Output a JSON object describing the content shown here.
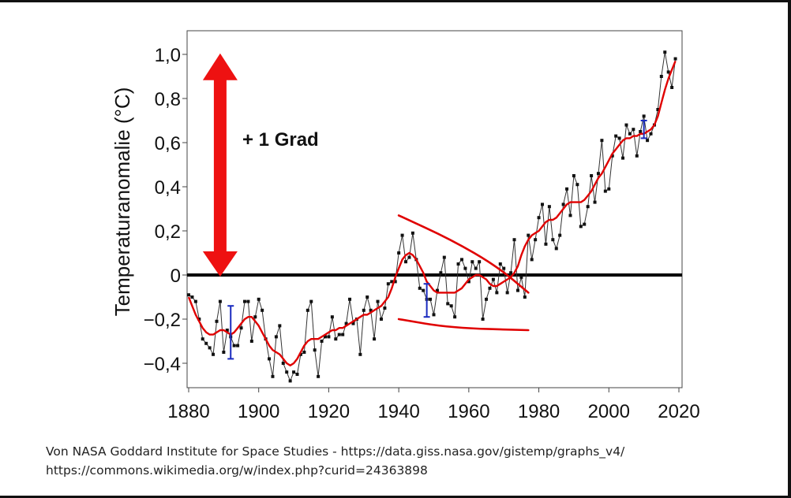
{
  "chart_data": {
    "type": "line",
    "title": "",
    "ylabel": "Temperaturanomalie (°C)",
    "xlabel": "",
    "xlim": [
      1880,
      2020
    ],
    "ylim": [
      -0.5,
      1.1
    ],
    "grid": false,
    "x_ticks": [
      "1880",
      "1900",
      "1920",
      "1940",
      "1960",
      "1980",
      "2000",
      "2020"
    ],
    "y_ticks": [
      {
        "value": 1.0,
        "label": "1,0"
      },
      {
        "value": 0.8,
        "label": "0,8"
      },
      {
        "value": 0.6,
        "label": "0,6"
      },
      {
        "value": 0.4,
        "label": "0,4"
      },
      {
        "value": 0.2,
        "label": "0,2"
      },
      {
        "value": 0.0,
        "label": "0"
      },
      {
        "value": -0.2,
        "label": "−0,2"
      },
      {
        "value": -0.4,
        "label": "−0,4"
      }
    ],
    "series": [
      {
        "color": "#111111",
        "style": "line-with-square-markers",
        "x": [
          1880,
          1881,
          1882,
          1883,
          1884,
          1885,
          1886,
          1887,
          1888,
          1889,
          1890,
          1891,
          1892,
          1893,
          1894,
          1895,
          1896,
          1897,
          1898,
          1899,
          1900,
          1901,
          1902,
          1903,
          1904,
          1905,
          1906,
          1907,
          1908,
          1909,
          1910,
          1911,
          1912,
          1913,
          1914,
          1915,
          1916,
          1917,
          1918,
          1919,
          1920,
          1921,
          1922,
          1923,
          1924,
          1925,
          1926,
          1927,
          1928,
          1929,
          1930,
          1931,
          1932,
          1933,
          1934,
          1935,
          1936,
          1937,
          1938,
          1939,
          1940,
          1941,
          1942,
          1943,
          1944,
          1945,
          1946,
          1947,
          1948,
          1949,
          1950,
          1951,
          1952,
          1953,
          1954,
          1955,
          1956,
          1957,
          1958,
          1959,
          1960,
          1961,
          1962,
          1963,
          1964,
          1965,
          1966,
          1967,
          1968,
          1969,
          1970,
          1971,
          1972,
          1973,
          1974,
          1975,
          1976,
          1977,
          1978,
          1979,
          1980,
          1981,
          1982,
          1983,
          1984,
          1985,
          1986,
          1987,
          1988,
          1989,
          1990,
          1991,
          1992,
          1993,
          1994,
          1995,
          1996,
          1997,
          1998,
          1999,
          2000,
          2001,
          2002,
          2003,
          2004,
          2005,
          2006,
          2007,
          2008,
          2009,
          2010,
          2011,
          2012,
          2013,
          2014,
          2015,
          2016,
          2017,
          2018,
          2019
        ],
        "y": [
          -0.09,
          -0.1,
          -0.12,
          -0.2,
          -0.29,
          -0.31,
          -0.33,
          -0.36,
          -0.21,
          -0.12,
          -0.35,
          -0.25,
          -0.28,
          -0.32,
          -0.32,
          -0.24,
          -0.12,
          -0.12,
          -0.3,
          -0.19,
          -0.11,
          -0.16,
          -0.29,
          -0.38,
          -0.46,
          -0.28,
          -0.23,
          -0.4,
          -0.44,
          -0.48,
          -0.44,
          -0.45,
          -0.36,
          -0.35,
          -0.16,
          -0.12,
          -0.34,
          -0.46,
          -0.3,
          -0.28,
          -0.28,
          -0.19,
          -0.29,
          -0.27,
          -0.27,
          -0.22,
          -0.11,
          -0.22,
          -0.2,
          -0.36,
          -0.16,
          -0.1,
          -0.16,
          -0.29,
          -0.12,
          -0.2,
          -0.15,
          -0.04,
          -0.03,
          -0.03,
          0.1,
          0.18,
          0.06,
          0.08,
          0.19,
          0.07,
          -0.06,
          -0.07,
          -0.11,
          -0.11,
          -0.18,
          -0.07,
          0.01,
          0.08,
          -0.13,
          -0.14,
          -0.19,
          0.05,
          0.07,
          0.03,
          -0.03,
          0.06,
          0.03,
          0.06,
          -0.2,
          -0.11,
          -0.06,
          -0.02,
          -0.08,
          0.05,
          0.03,
          -0.08,
          0.01,
          0.16,
          -0.07,
          -0.01,
          -0.1,
          0.18,
          0.07,
          0.16,
          0.26,
          0.32,
          0.14,
          0.31,
          0.16,
          0.12,
          0.18,
          0.32,
          0.39,
          0.27,
          0.45,
          0.41,
          0.22,
          0.23,
          0.31,
          0.45,
          0.33,
          0.46,
          0.61,
          0.38,
          0.39,
          0.54,
          0.63,
          0.62,
          0.53,
          0.68,
          0.64,
          0.66,
          0.54,
          0.65,
          0.72,
          0.61,
          0.64,
          0.68,
          0.75,
          0.9,
          1.01,
          0.92,
          0.85,
          0.98
        ]
      },
      {
        "color": "#e00000",
        "style": "smooth-line",
        "x": [
          1880,
          1881,
          1882,
          1883,
          1884,
          1885,
          1886,
          1887,
          1888,
          1889,
          1890,
          1891,
          1892,
          1893,
          1894,
          1895,
          1896,
          1897,
          1898,
          1899,
          1900,
          1901,
          1902,
          1903,
          1904,
          1905,
          1906,
          1907,
          1908,
          1909,
          1910,
          1911,
          1912,
          1913,
          1914,
          1915,
          1916,
          1917,
          1918,
          1919,
          1920,
          1921,
          1922,
          1923,
          1924,
          1925,
          1926,
          1927,
          1928,
          1929,
          1930,
          1931,
          1932,
          1933,
          1934,
          1935,
          1936,
          1937,
          1938,
          1939,
          1940,
          1941,
          1942,
          1943,
          1944,
          1945,
          1946,
          1947,
          1948,
          1949,
          1950,
          1951,
          1952,
          1953,
          1954,
          1955,
          1956,
          1957,
          1958,
          1959,
          1960,
          1961,
          1962,
          1963,
          1964,
          1965,
          1966,
          1967,
          1968,
          1969,
          1970,
          1971,
          1972,
          1973,
          1974,
          1975,
          1976,
          1977,
          1978,
          1979,
          1980,
          1981,
          1982,
          1983,
          1984,
          1985,
          1986,
          1987,
          1988,
          1989,
          1990,
          1991,
          1992,
          1993,
          1994,
          1995,
          1996,
          1997,
          1998,
          1999,
          2000,
          2001,
          2002,
          2003,
          2004,
          2005,
          2006,
          2007,
          2008,
          2009,
          2010,
          2011,
          2012,
          2013,
          2014,
          2015,
          2016,
          2017,
          2018,
          2019
        ],
        "y": [
          -0.1,
          -0.14,
          -0.18,
          -0.21,
          -0.24,
          -0.26,
          -0.27,
          -0.27,
          -0.26,
          -0.25,
          -0.25,
          -0.26,
          -0.27,
          -0.26,
          -0.24,
          -0.22,
          -0.2,
          -0.19,
          -0.19,
          -0.21,
          -0.23,
          -0.26,
          -0.29,
          -0.32,
          -0.34,
          -0.35,
          -0.36,
          -0.38,
          -0.4,
          -0.41,
          -0.4,
          -0.38,
          -0.35,
          -0.32,
          -0.3,
          -0.29,
          -0.29,
          -0.29,
          -0.28,
          -0.27,
          -0.26,
          -0.25,
          -0.25,
          -0.24,
          -0.24,
          -0.23,
          -0.22,
          -0.21,
          -0.2,
          -0.19,
          -0.18,
          -0.18,
          -0.17,
          -0.16,
          -0.15,
          -0.14,
          -0.12,
          -0.1,
          -0.06,
          -0.01,
          0.03,
          0.07,
          0.09,
          0.1,
          0.09,
          0.07,
          0.04,
          0.01,
          -0.03,
          -0.05,
          -0.07,
          -0.08,
          -0.08,
          -0.08,
          -0.08,
          -0.08,
          -0.08,
          -0.07,
          -0.06,
          -0.04,
          -0.02,
          -0.01,
          0.0,
          0.0,
          -0.01,
          -0.02,
          -0.04,
          -0.05,
          -0.05,
          -0.04,
          -0.03,
          -0.02,
          -0.01,
          0.01,
          0.04,
          0.09,
          0.13,
          0.16,
          0.18,
          0.19,
          0.2,
          0.22,
          0.24,
          0.25,
          0.25,
          0.26,
          0.28,
          0.3,
          0.32,
          0.33,
          0.33,
          0.33,
          0.33,
          0.34,
          0.36,
          0.38,
          0.41,
          0.44,
          0.46,
          0.49,
          0.52,
          0.55,
          0.57,
          0.59,
          0.61,
          0.62,
          0.62,
          0.63,
          0.63,
          0.64,
          0.64,
          0.65,
          0.66,
          0.68,
          0.72,
          0.78,
          0.84,
          0.89,
          0.93,
          0.97
        ]
      }
    ],
    "error_bars": [
      {
        "x": 1892,
        "low": -0.38,
        "high": -0.14
      },
      {
        "x": 1948,
        "low": -0.19,
        "high": -0.04
      },
      {
        "x": 2010,
        "low": 0.62,
        "high": 0.7
      }
    ],
    "reference_line": {
      "y": 0,
      "color": "#000000"
    },
    "annotations": [
      {
        "type": "double-arrow",
        "color": "#ee1111",
        "x": 1889,
        "y_from": 0.0,
        "y_to": 0.99
      },
      {
        "type": "text",
        "text": "+ 1 Grad"
      },
      {
        "type": "hand-drawn-line",
        "color": "#e00000",
        "points": [
          [
            1940,
            0.27
          ],
          [
            1955,
            0.16
          ],
          [
            1968,
            0.04
          ],
          [
            1977,
            -0.08
          ]
        ]
      },
      {
        "type": "hand-drawn-line",
        "color": "#e00000",
        "points": [
          [
            1940,
            -0.2
          ],
          [
            1955,
            -0.24
          ],
          [
            1977,
            -0.25
          ]
        ]
      }
    ]
  },
  "caption": {
    "line1": "Von NASA Goddard Institute for Space Studies - https://data.giss.nasa.gov/gistemp/graphs_v4/",
    "line2": "https://commons.wikimedia.org/w/index.php?curid=24363898"
  }
}
